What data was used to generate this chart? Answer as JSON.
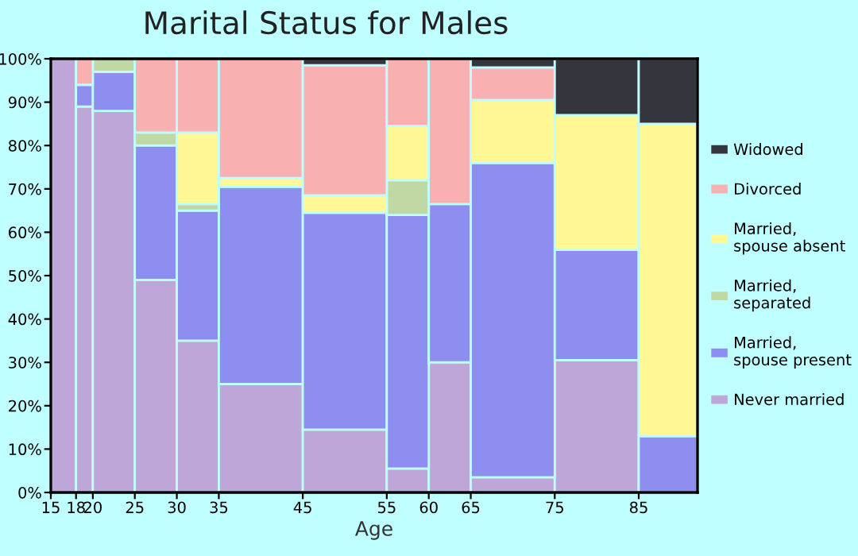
{
  "chart_data": {
    "type": "bar",
    "stacked": true,
    "title": "Marital Status for Males",
    "xlabel": "Age",
    "x": [
      16.5,
      19,
      22.5,
      27.5,
      32.5,
      40,
      50,
      57.5,
      62.5,
      70,
      80,
      88.5
    ],
    "xlim": [
      15,
      92
    ],
    "xticks": [
      15,
      18,
      20,
      25,
      30,
      35,
      45,
      55,
      60,
      65,
      75,
      85
    ],
    "ylim": [
      0,
      100
    ],
    "yticks": [
      {
        "value": 0,
        "label": "0%"
      },
      {
        "value": 10,
        "label": "10%"
      },
      {
        "value": 20,
        "label": "20%"
      },
      {
        "value": 30,
        "label": "30%"
      },
      {
        "value": 40,
        "label": "40%"
      },
      {
        "value": 50,
        "label": "50%"
      },
      {
        "value": 60,
        "label": "60%"
      },
      {
        "value": 70,
        "label": "70%"
      },
      {
        "value": 80,
        "label": "80%"
      },
      {
        "value": 90,
        "label": "90%"
      },
      {
        "value": 100,
        "label": "100%"
      }
    ],
    "grid": false,
    "legend": "right",
    "series": [
      {
        "name": "Never married",
        "color": "#bea6d8",
        "values": [
          100,
          89,
          88,
          49,
          35,
          25,
          14.5,
          5.5,
          30,
          3.5,
          30.5,
          null
        ]
      },
      {
        "name": "Married, spouse present",
        "color": "#8e8ef0",
        "values": [
          null,
          5,
          9,
          31,
          30,
          45.5,
          50,
          58.5,
          36.5,
          72.5,
          25.5,
          13
        ]
      },
      {
        "name": "Married, separated",
        "color": "#c0d8a4",
        "values": [
          null,
          null,
          3,
          3,
          1.5,
          null,
          null,
          8,
          null,
          null,
          null,
          null
        ]
      },
      {
        "name": "Married, spouse absent",
        "color": "#fff894",
        "values": [
          null,
          null,
          null,
          null,
          16.5,
          2,
          4,
          12.5,
          null,
          14.5,
          31,
          72
        ]
      },
      {
        "name": "Divorced",
        "color": "#f8b0b0",
        "values": [
          null,
          6,
          null,
          17,
          17,
          27.5,
          30,
          15.5,
          33.5,
          7.5,
          null,
          null
        ]
      },
      {
        "name": "Widowed",
        "color": "#35353d",
        "values": [
          null,
          null,
          null,
          null,
          null,
          null,
          1.5,
          null,
          null,
          2,
          13,
          15
        ]
      }
    ]
  }
}
